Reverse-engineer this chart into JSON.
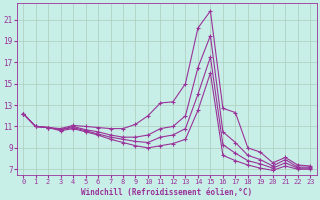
{
  "xlabel": "Windchill (Refroidissement éolien,°C)",
  "bg_color": "#c8eee8",
  "line_color": "#993399",
  "grid_color": "#aaccbb",
  "xlim": [
    -0.5,
    23.5
  ],
  "ylim": [
    6.5,
    22.5
  ],
  "yticks": [
    7,
    9,
    11,
    13,
    15,
    17,
    19,
    21
  ],
  "xticks": [
    0,
    1,
    2,
    3,
    4,
    5,
    6,
    7,
    8,
    9,
    10,
    11,
    12,
    13,
    14,
    15,
    16,
    17,
    18,
    19,
    20,
    21,
    22,
    23
  ],
  "curves": [
    [
      12.2,
      11.0,
      10.9,
      10.8,
      11.1,
      11.0,
      10.9,
      10.8,
      10.8,
      11.2,
      12.0,
      13.2,
      13.3,
      15.0,
      20.2,
      21.8,
      12.7,
      12.3,
      9.0,
      8.6,
      7.6,
      8.1,
      7.4,
      7.3
    ],
    [
      12.2,
      11.0,
      10.9,
      10.7,
      11.0,
      10.7,
      10.5,
      10.2,
      10.0,
      10.0,
      10.2,
      10.8,
      11.0,
      12.0,
      16.5,
      19.5,
      10.5,
      9.5,
      8.3,
      7.9,
      7.3,
      7.9,
      7.2,
      7.2
    ],
    [
      12.2,
      11.0,
      10.9,
      10.7,
      10.9,
      10.6,
      10.3,
      10.0,
      9.8,
      9.6,
      9.5,
      10.0,
      10.2,
      10.8,
      14.0,
      17.5,
      9.3,
      8.5,
      7.8,
      7.5,
      7.1,
      7.6,
      7.1,
      7.1
    ],
    [
      12.2,
      11.0,
      10.9,
      10.6,
      10.8,
      10.5,
      10.2,
      9.8,
      9.5,
      9.2,
      9.0,
      9.2,
      9.4,
      9.8,
      12.5,
      16.0,
      8.3,
      7.8,
      7.4,
      7.1,
      6.9,
      7.3,
      7.0,
      7.0
    ]
  ]
}
